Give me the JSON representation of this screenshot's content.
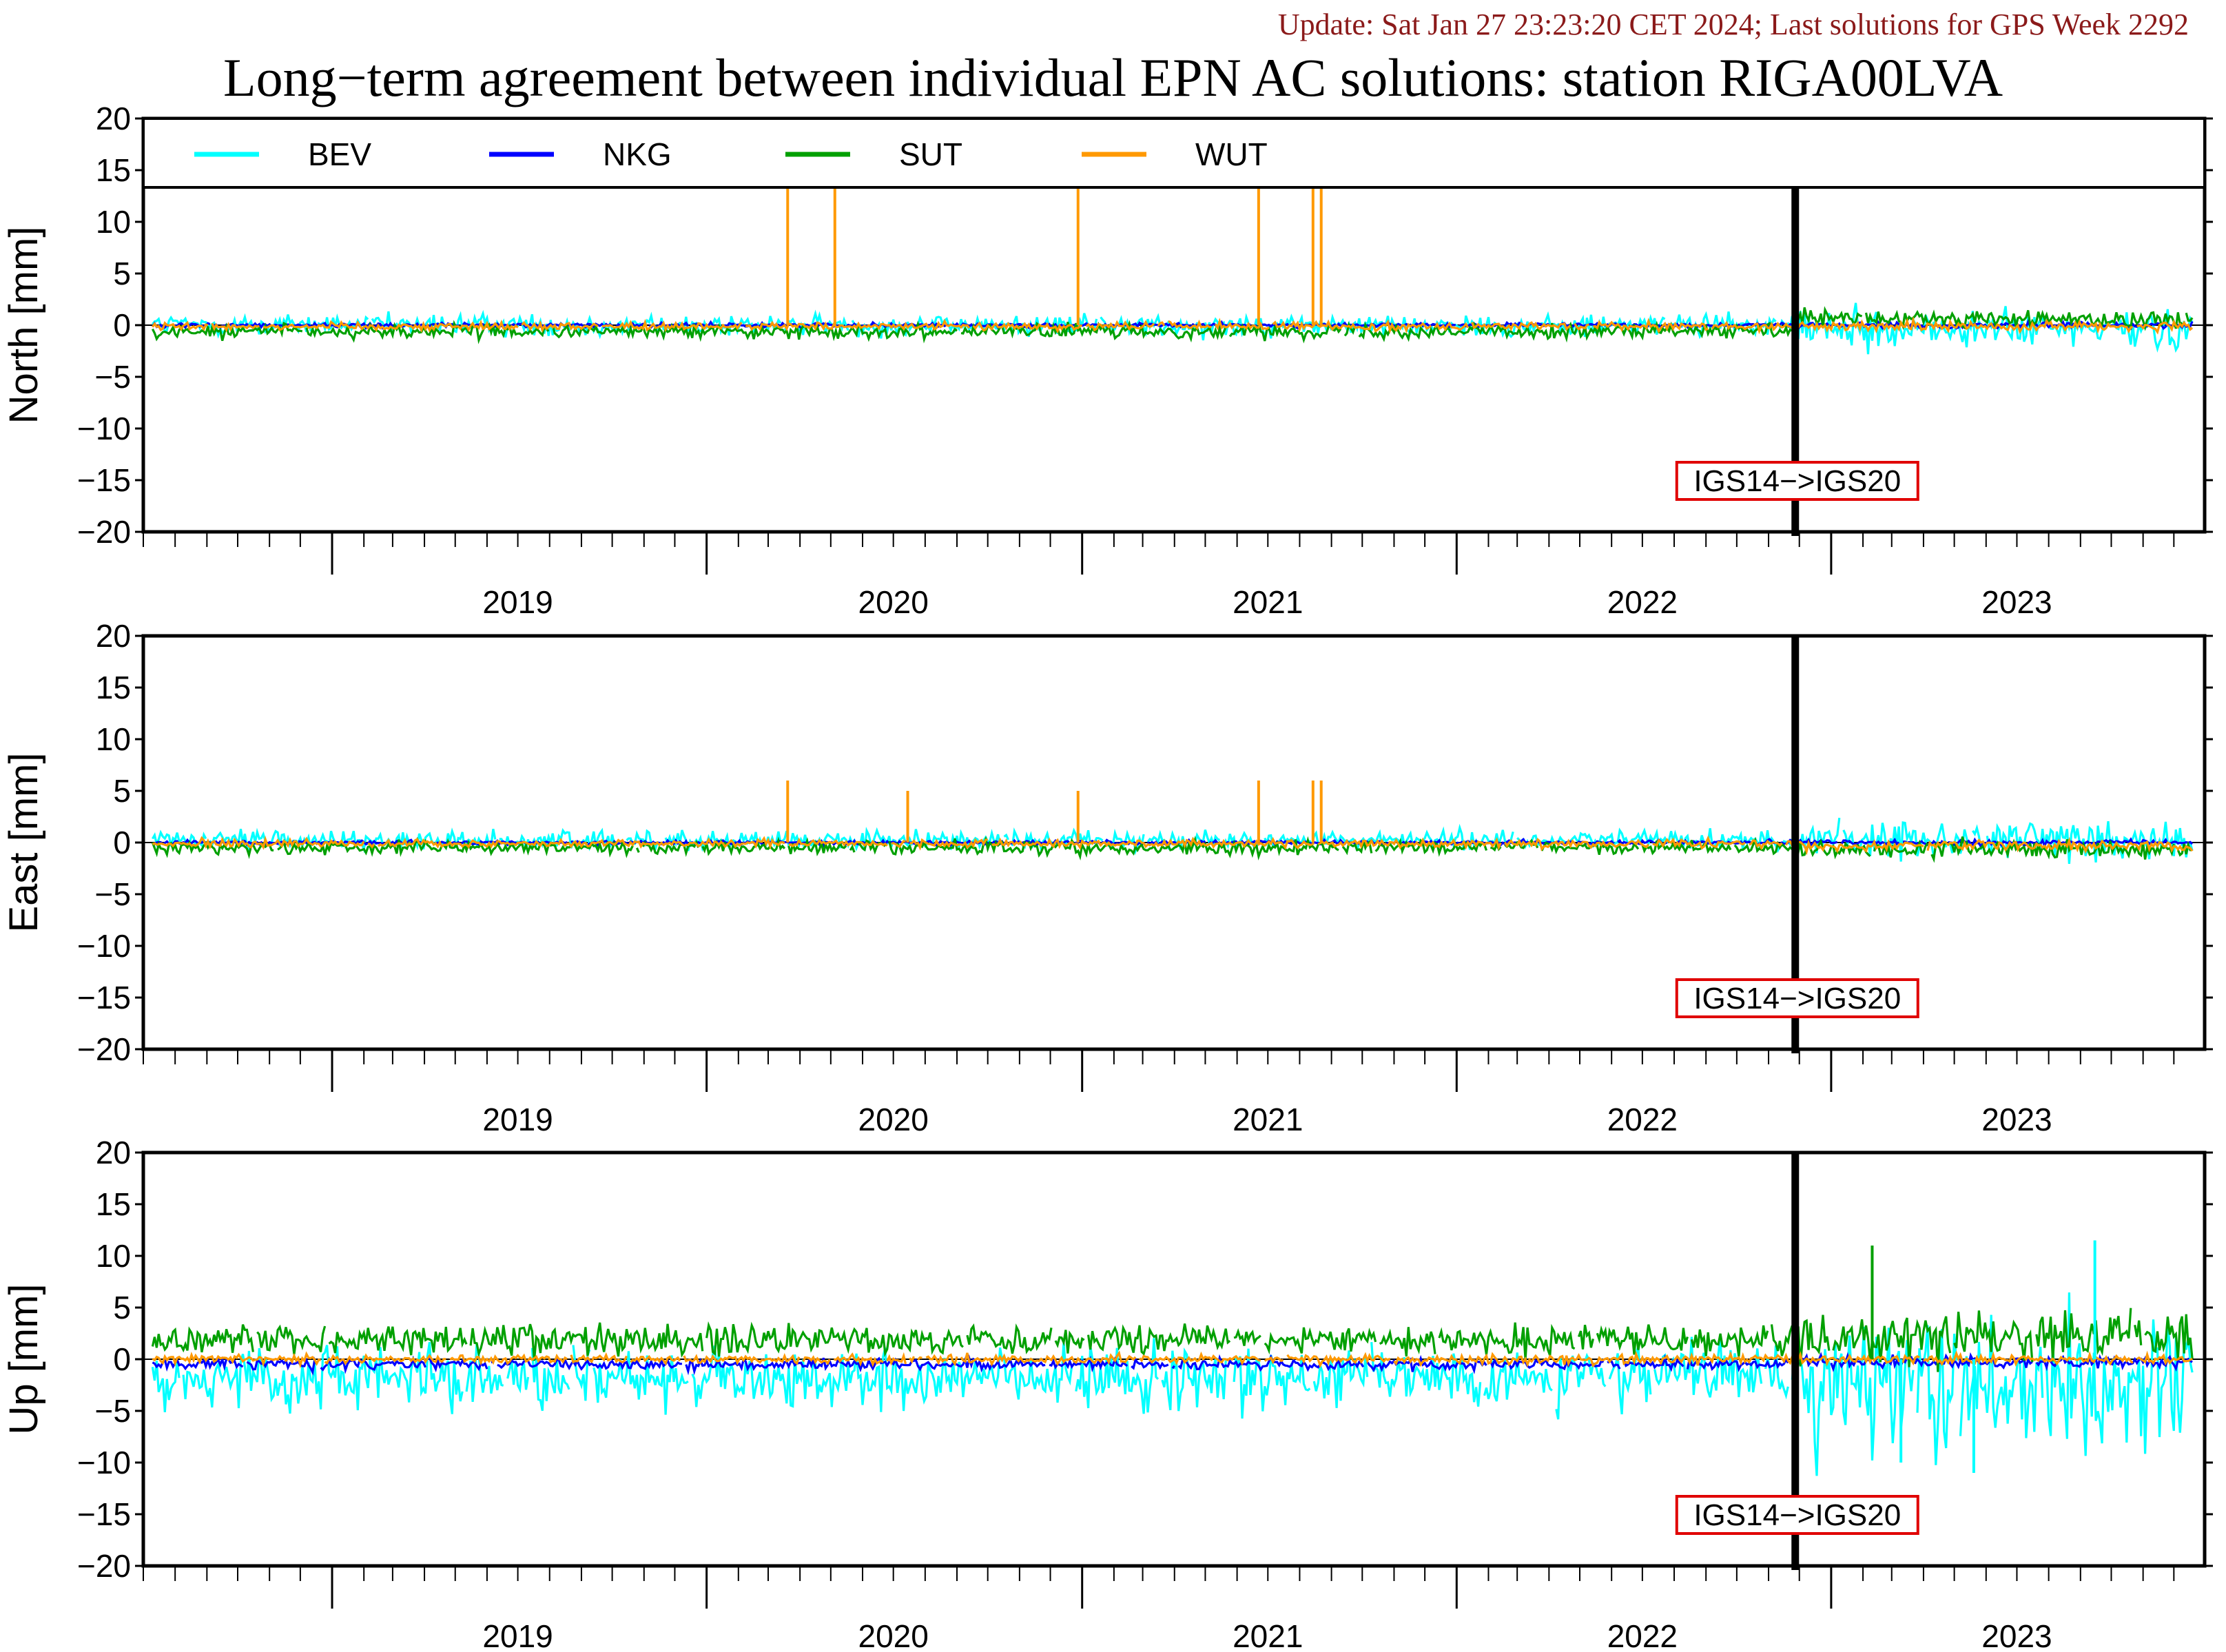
{
  "header": {
    "update_text": "Update: Sat Jan 27 23:23:20 CET 2024; Last solutions for GPS Week 2292",
    "title": "Long−term agreement between individual EPN AC solutions: station RIGA00LVA"
  },
  "chart_data": {
    "type": "line",
    "x_range": [
      "2018-07-01",
      "2023-12-31"
    ],
    "x_year_labels": [
      "2019",
      "2020",
      "2021",
      "2022",
      "2023"
    ],
    "ylim": [
      -20,
      20
    ],
    "y_ticks": [
      20,
      15,
      10,
      5,
      0,
      -5,
      -10,
      -15,
      -20
    ],
    "y_tick_labels": [
      "20",
      "15",
      "10",
      "5",
      "0",
      "−5",
      "−10",
      "−15",
      "−20"
    ],
    "legend": [
      {
        "name": "BEV",
        "color": "#00ffff"
      },
      {
        "name": "NKG",
        "color": "#0000ff"
      },
      {
        "name": "SUT",
        "color": "#00a000"
      },
      {
        "name": "WUT",
        "color": "#ff9900"
      }
    ],
    "legend_placement": "top-left",
    "reference_frame_change": {
      "date": "2022-11-27",
      "label": "IGS14−>IGS20"
    },
    "panels": [
      {
        "component": "north",
        "ylabel": "North [mm]",
        "series": [
          {
            "name": "BEV",
            "color": "#00ffff",
            "amp_before": 0.7,
            "amp_after": 1.3,
            "offset_before": 0.0,
            "offset_after": -0.4
          },
          {
            "name": "NKG",
            "color": "#0000ff",
            "amp_before": 0.15,
            "amp_after": 0.2,
            "offset_before": 0.0,
            "offset_after": 0.0
          },
          {
            "name": "SUT",
            "color": "#00a000",
            "amp_before": 0.45,
            "amp_after": 0.6,
            "offset_before": -0.6,
            "offset_after": 0.6
          },
          {
            "name": "WUT",
            "color": "#ff9900",
            "amp_before": 0.25,
            "amp_after": 0.3,
            "offset_before": -0.1,
            "offset_after": -0.1
          }
        ],
        "spikes": [
          {
            "series": "WUT",
            "date": "2020-03-20",
            "value": 20
          },
          {
            "series": "WUT",
            "date": "2020-05-05",
            "value": 20
          },
          {
            "series": "WUT",
            "date": "2020-12-28",
            "value": 20
          },
          {
            "series": "WUT",
            "date": "2021-06-22",
            "value": 20
          },
          {
            "series": "WUT",
            "date": "2021-08-14",
            "value": 20
          },
          {
            "series": "WUT",
            "date": "2021-08-22",
            "value": 20
          }
        ]
      },
      {
        "component": "east",
        "ylabel": "East [mm]",
        "series": [
          {
            "name": "BEV",
            "color": "#00ffff",
            "amp_before": 0.6,
            "amp_after": 1.3,
            "offset_before": 0.2,
            "offset_after": 0.3
          },
          {
            "name": "NKG",
            "color": "#0000ff",
            "amp_before": 0.15,
            "amp_after": 0.2,
            "offset_before": 0.0,
            "offset_after": 0.0
          },
          {
            "name": "SUT",
            "color": "#00a000",
            "amp_before": 0.45,
            "amp_after": 0.6,
            "offset_before": -0.5,
            "offset_after": -0.6
          },
          {
            "name": "WUT",
            "color": "#ff9900",
            "amp_before": 0.25,
            "amp_after": 0.3,
            "offset_before": -0.1,
            "offset_after": -0.3
          }
        ],
        "spikes": [
          {
            "series": "WUT",
            "date": "2020-03-20",
            "value": 6
          },
          {
            "series": "WUT",
            "date": "2020-07-15",
            "value": 5
          },
          {
            "series": "WUT",
            "date": "2020-12-28",
            "value": 5
          },
          {
            "series": "WUT",
            "date": "2021-06-22",
            "value": 6
          },
          {
            "series": "WUT",
            "date": "2021-08-14",
            "value": 6
          },
          {
            "series": "WUT",
            "date": "2021-08-22",
            "value": 6
          }
        ]
      },
      {
        "component": "up",
        "ylabel": "Up [mm]",
        "series": [
          {
            "name": "BEV",
            "color": "#00ffff",
            "amp_before": 2.0,
            "amp_after": 4.5,
            "offset_before": -1.8,
            "offset_after": -2.5
          },
          {
            "name": "NKG",
            "color": "#0000ff",
            "amp_before": 0.35,
            "amp_after": 0.4,
            "offset_before": -0.5,
            "offset_after": -0.3
          },
          {
            "name": "SUT",
            "color": "#00a000",
            "amp_before": 1.0,
            "amp_after": 1.8,
            "offset_before": 1.8,
            "offset_after": 2.0
          },
          {
            "name": "WUT",
            "color": "#ff9900",
            "amp_before": 0.3,
            "amp_after": 0.3,
            "offset_before": 0.0,
            "offset_after": 0.0
          }
        ],
        "spikes": [
          {
            "series": "SUT",
            "date": "2023-02-10",
            "value": 11
          },
          {
            "series": "BEV",
            "date": "2023-09-15",
            "value": 11.5
          },
          {
            "series": "BEV",
            "date": "2023-05-20",
            "value": -11
          },
          {
            "series": "BEV",
            "date": "2023-03-10",
            "value": -10
          }
        ]
      }
    ]
  }
}
